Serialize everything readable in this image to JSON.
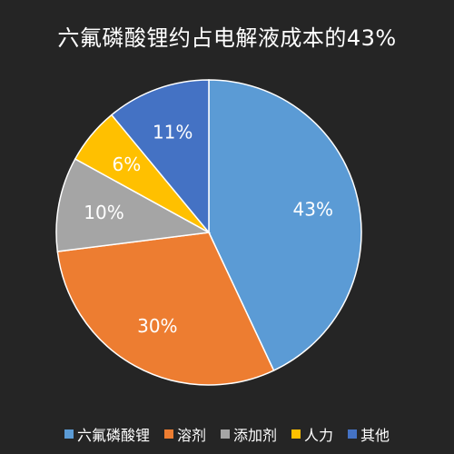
{
  "chart_data": {
    "type": "pie",
    "title": "六氟磷酸锂约占电解液成本的43%",
    "slices": [
      {
        "name": "六氟磷酸锂",
        "value": 43,
        "label": "43%",
        "color": "#5b9bd5"
      },
      {
        "name": "溶剂",
        "value": 30,
        "label": "30%",
        "color": "#ed7d31"
      },
      {
        "name": "添加剂",
        "value": 10,
        "label": "10%",
        "color": "#a5a5a5"
      },
      {
        "name": "人力",
        "value": 6,
        "label": "6%",
        "color": "#ffc000"
      },
      {
        "name": "其他",
        "value": 11,
        "label": "11%",
        "color": "#4472c4"
      }
    ],
    "legend_position": "bottom",
    "background": "#252525"
  }
}
